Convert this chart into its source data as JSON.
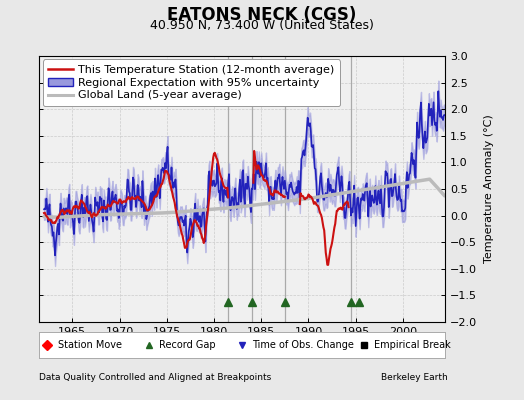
{
  "title": "EATONS NECK (CGS)",
  "subtitle": "40.950 N, 73.400 W (United States)",
  "ylabel": "Temperature Anomaly (°C)",
  "xlabel_bottom_left": "Data Quality Controlled and Aligned at Breakpoints",
  "xlabel_bottom_right": "Berkeley Earth",
  "ylim": [
    -2.0,
    3.0
  ],
  "xlim": [
    1961.5,
    2004.5
  ],
  "yticks": [
    -2,
    -1.5,
    -1,
    -0.5,
    0,
    0.5,
    1,
    1.5,
    2,
    2.5,
    3
  ],
  "xticks": [
    1965,
    1970,
    1975,
    1980,
    1985,
    1990,
    1995,
    2000
  ],
  "vertical_lines": [
    1981.5,
    1984.0,
    1987.5,
    1994.5
  ],
  "record_gap_x": [
    1981.5,
    1984.0,
    1987.5,
    1994.5,
    1995.3
  ],
  "bg_color": "#e8e8e8",
  "plot_bg_color": "#f0f0f0",
  "regional_color": "#2222bb",
  "regional_band_color": "#9999dd",
  "station_color": "#cc1111",
  "global_color": "#bbbbbb",
  "global_linewidth": 2.5,
  "regional_linewidth": 1.2,
  "station_linewidth": 1.5,
  "legend_fontsize": 8,
  "title_fontsize": 12,
  "subtitle_fontsize": 9,
  "tick_fontsize": 8
}
